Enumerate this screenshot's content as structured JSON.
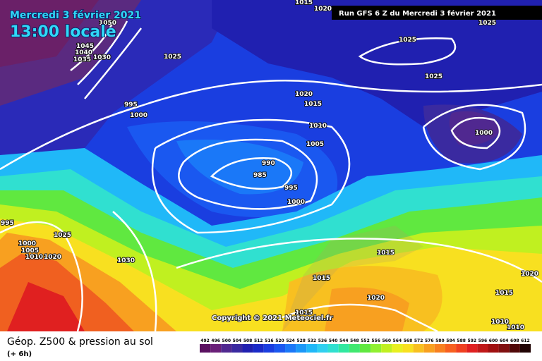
{
  "header": {
    "date": "Mercredi 3 février 2021",
    "time": "13:00 locale",
    "run": "Run GFS 6 Z du Mercredi 3 février 2021"
  },
  "copyright": "Copyright © 2021 Meteociel.fr",
  "legend": {
    "title": "Géop. Z500 & pression au sol",
    "lead": "(+ 6h)",
    "scale": [
      492,
      496,
      500,
      504,
      508,
      512,
      516,
      520,
      524,
      528,
      532,
      536,
      540,
      544,
      548,
      552,
      556,
      560,
      564,
      568,
      572,
      576,
      580,
      584,
      588,
      592,
      596,
      600,
      604,
      608,
      612
    ],
    "colors": [
      "#5a1060",
      "#6a2078",
      "#502890",
      "#3a2aa0",
      "#2020b0",
      "#1a2ac8",
      "#1a3ee0",
      "#1a58f0",
      "#1a78f8",
      "#1a98f8",
      "#20b8f8",
      "#30d0f0",
      "#30e0d0",
      "#30e8a0",
      "#40e870",
      "#60e840",
      "#90f030",
      "#c0f020",
      "#e8f020",
      "#f8e020",
      "#f8c020",
      "#f8a020",
      "#f88020",
      "#f86020",
      "#f04020",
      "#e02020",
      "#c01818",
      "#a01010",
      "#801010",
      "#500808",
      "#200404"
    ]
  },
  "isobars": [
    1015,
    1020,
    1025,
    1025,
    1025,
    1025,
    1050,
    1045,
    1040,
    1035,
    1030,
    1020,
    1015,
    995,
    1000,
    1010,
    1005,
    1000,
    990,
    985,
    995,
    1000,
    995,
    1025,
    1030,
    1015,
    1015,
    1020,
    1015,
    1020,
    1015,
    1010,
    1010,
    1000,
    1005,
    1010,
    1020
  ]
}
